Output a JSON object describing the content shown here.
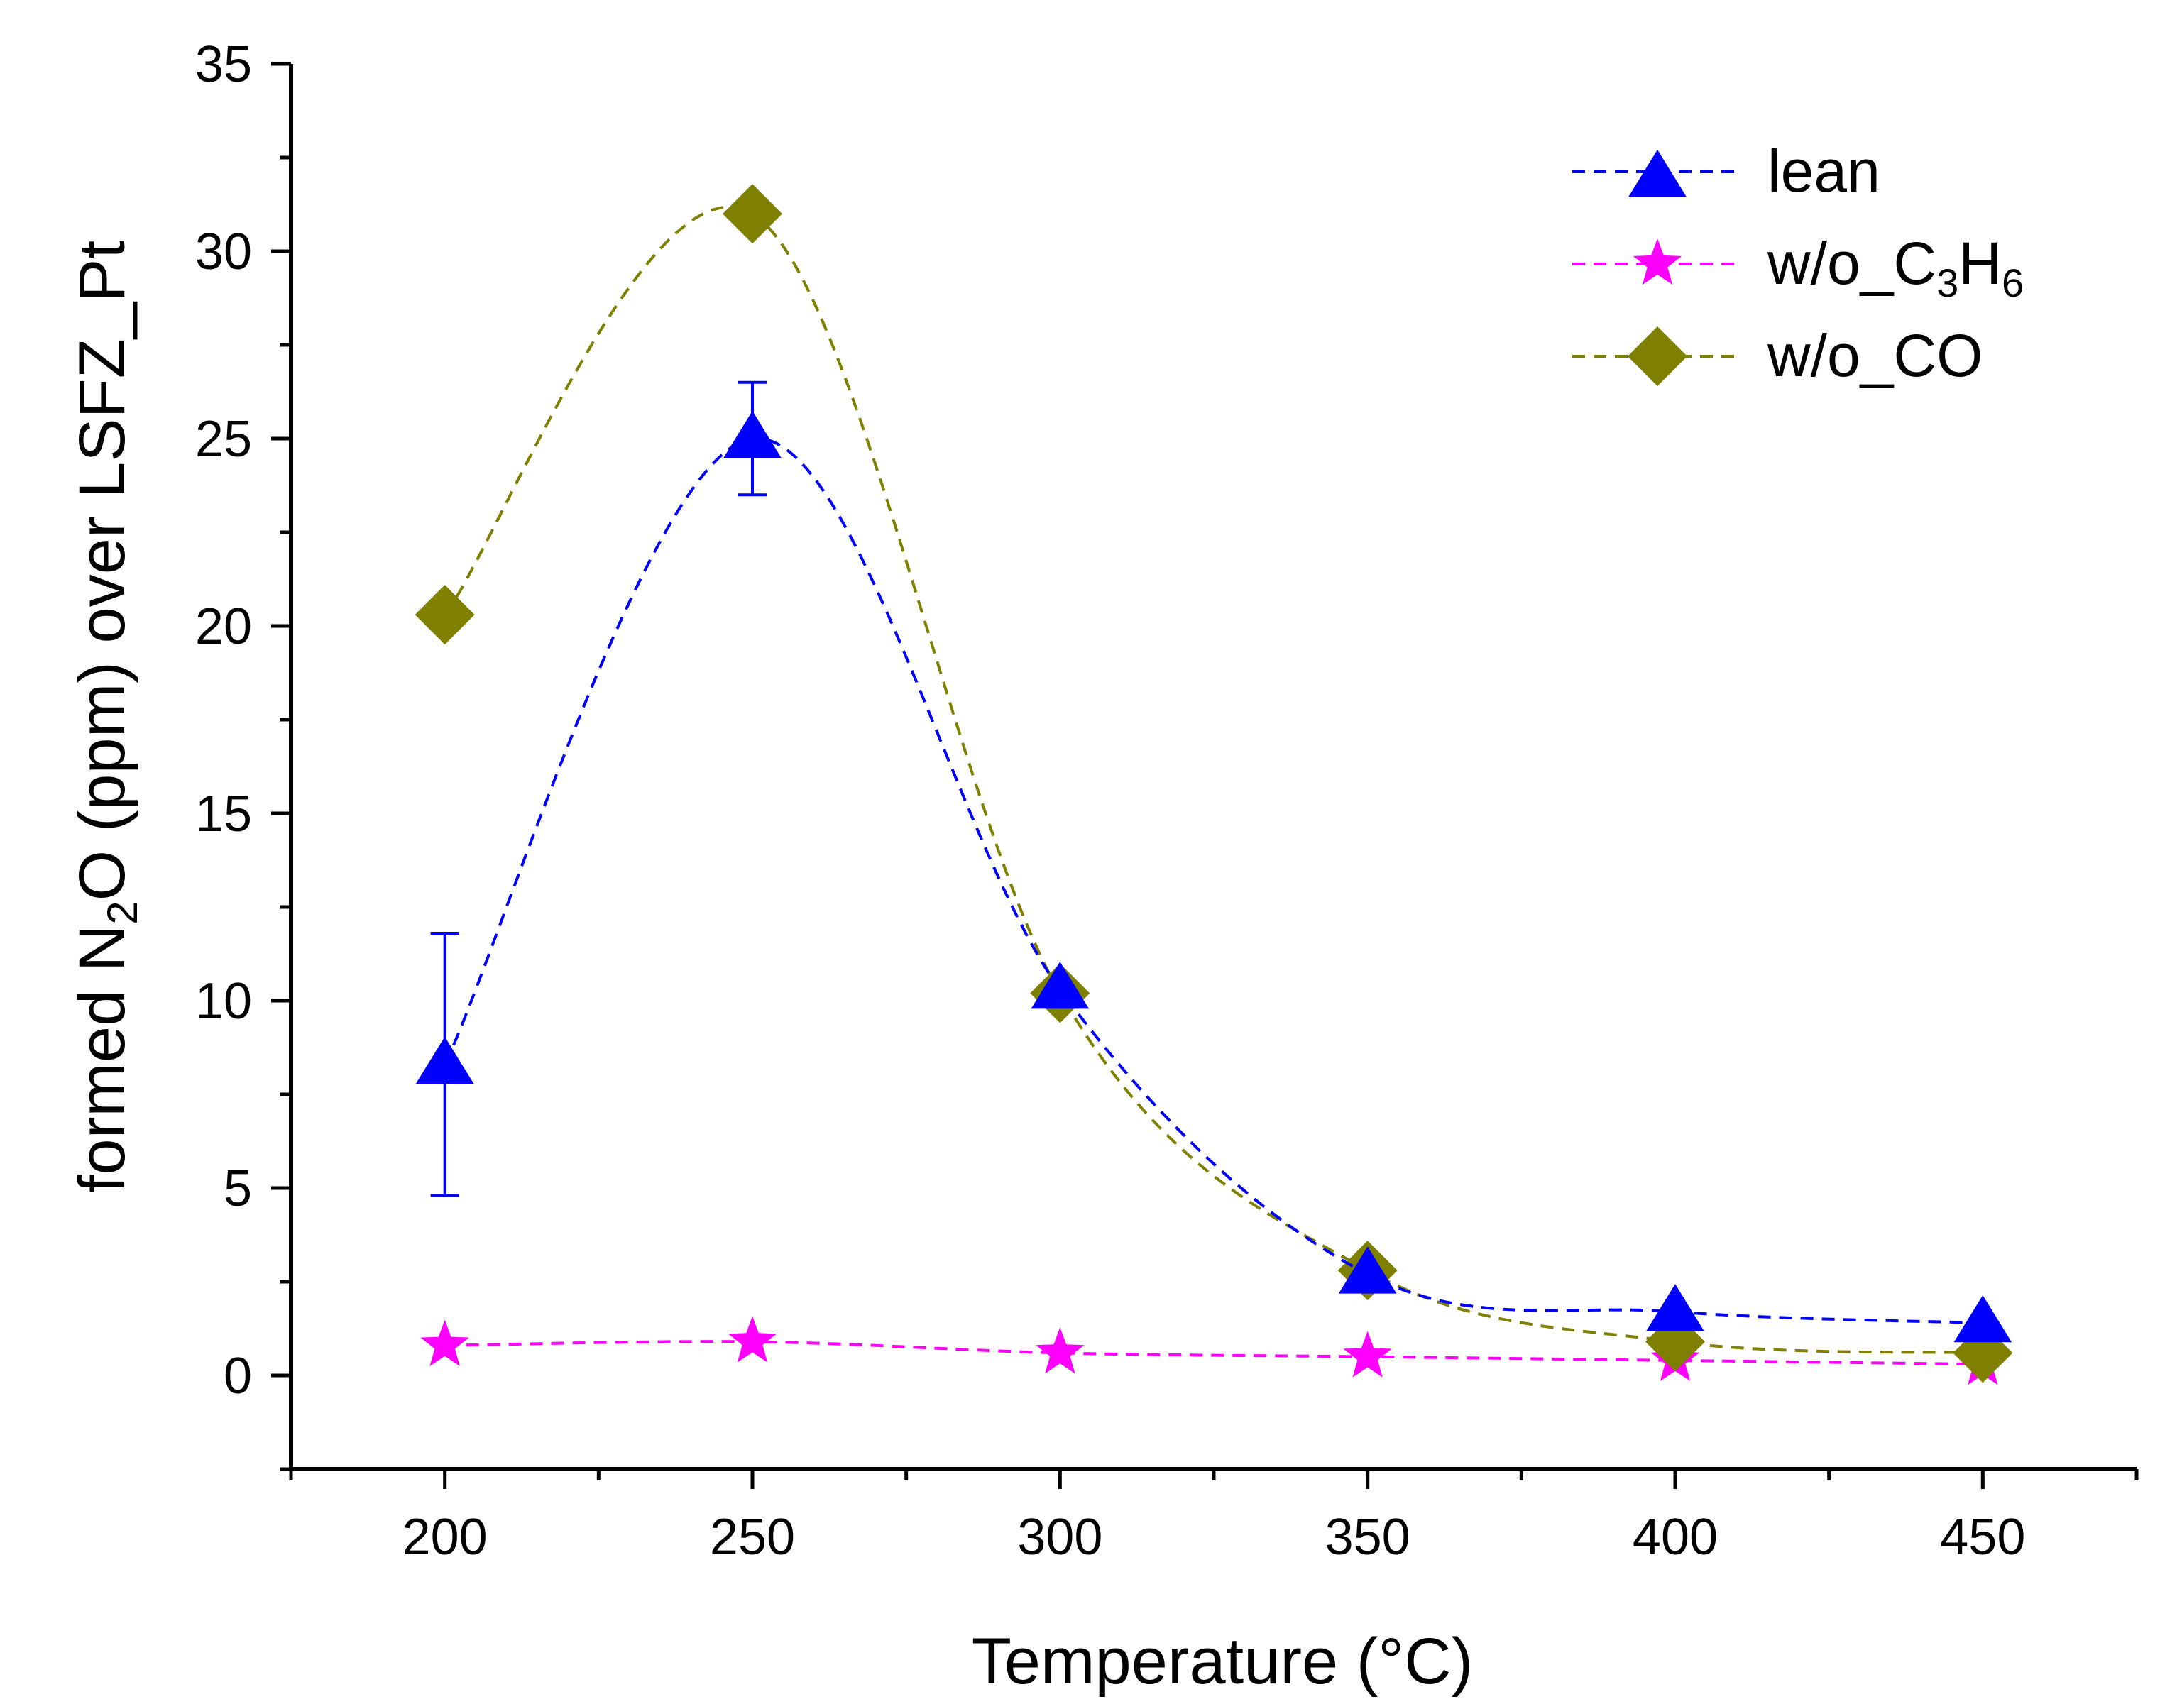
{
  "chart_data": {
    "type": "line",
    "xlabel": "Temperature (°C)",
    "ylabel": {
      "prefix": "formed N",
      "sub": "2",
      "suffix": "O (ppm) over LSFZ_Pt"
    },
    "xlim": [
      175,
      475
    ],
    "ylim": [
      -2.5,
      35
    ],
    "x_ticks": [
      200,
      250,
      300,
      350,
      400,
      450
    ],
    "y_ticks": [
      0,
      5,
      10,
      15,
      20,
      25,
      30,
      35
    ],
    "series": [
      {
        "name": "lean",
        "legend": {
          "main": "lean"
        },
        "marker": "triangle",
        "color": "#0000ff",
        "x": [
          200,
          250,
          300,
          350,
          400,
          450
        ],
        "y": [
          8.3,
          25.0,
          10.3,
          2.7,
          1.7,
          1.4
        ],
        "error": [
          3.5,
          1.5,
          0,
          0,
          0,
          0
        ]
      },
      {
        "name": "w/o_C3H6",
        "legend": {
          "main": "w/o_C",
          "sub1": "3",
          "mid": "H",
          "sub2": "6"
        },
        "marker": "star",
        "color": "#ff00ff",
        "x": [
          200,
          250,
          300,
          350,
          400,
          450
        ],
        "y": [
          0.8,
          0.9,
          0.6,
          0.5,
          0.4,
          0.3
        ],
        "error": [
          0,
          0,
          0,
          0,
          0,
          0
        ]
      },
      {
        "name": "w/o_CO",
        "legend": {
          "main": "w/o_CO"
        },
        "marker": "diamond",
        "color": "#808000",
        "x": [
          200,
          250,
          300,
          350,
          400,
          450
        ],
        "y": [
          20.3,
          31.0,
          10.2,
          2.8,
          0.9,
          0.6
        ],
        "error": [
          0,
          0,
          0,
          0,
          0,
          0
        ]
      }
    ],
    "legend_position": "top-right"
  }
}
